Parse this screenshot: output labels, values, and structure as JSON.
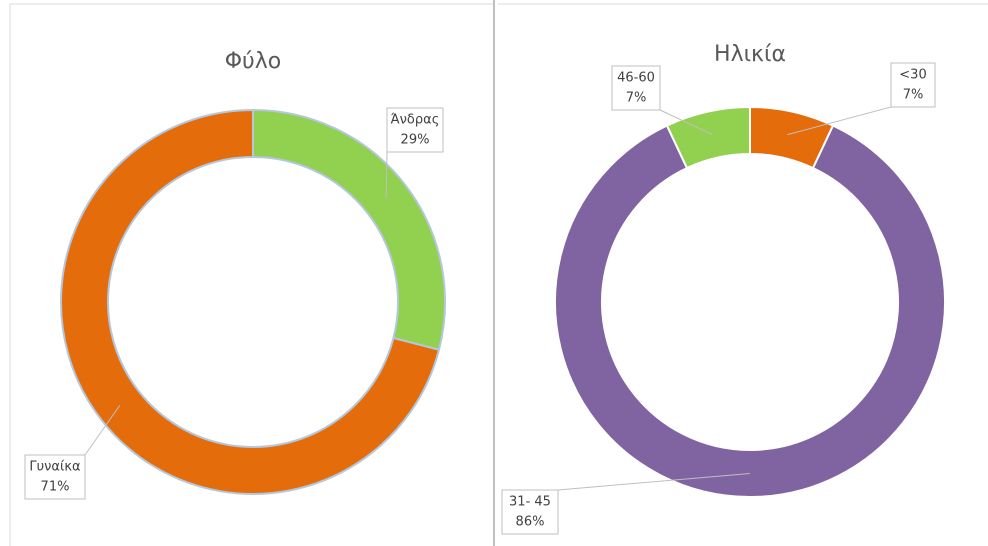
{
  "chart_data": [
    {
      "type": "donut",
      "title": "Φύλο",
      "categories": [
        "Άνδρας",
        "Γυναίκα"
      ],
      "values": [
        29,
        71
      ],
      "value_labels": [
        "29%",
        "71%"
      ],
      "colors": [
        "#92d050",
        "#e46c0a"
      ]
    },
    {
      "type": "donut",
      "title": "Ηλικία",
      "categories": [
        "<30",
        "31- 45",
        "46-60"
      ],
      "values": [
        7,
        86,
        7
      ],
      "value_labels": [
        "7%",
        "86%",
        "7%"
      ],
      "colors": [
        "#e46c0a",
        "#8064a2",
        "#92d050"
      ]
    }
  ]
}
